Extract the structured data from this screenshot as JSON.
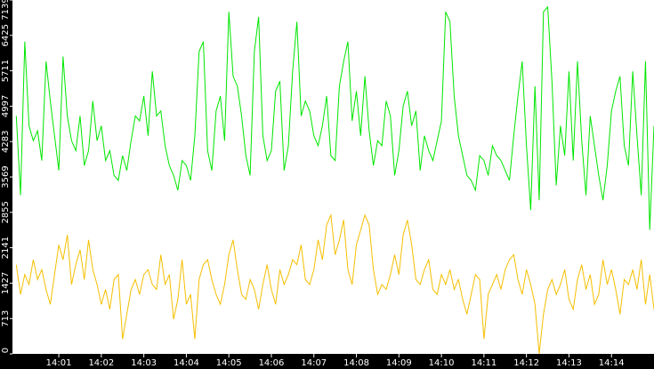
{
  "chart_data": {
    "type": "line",
    "x": [
      0,
      0.1,
      0.2,
      0.3,
      0.4,
      0.5,
      0.6,
      0.7,
      0.8,
      0.9,
      1,
      1.1,
      1.2,
      1.3,
      1.4,
      1.5,
      1.6,
      1.7,
      1.8,
      1.9,
      2,
      2.1,
      2.2,
      2.3,
      2.4,
      2.5,
      2.6,
      2.7,
      2.8,
      2.9,
      3,
      3.1,
      3.2,
      3.3,
      3.4,
      3.5,
      3.6,
      3.7,
      3.8,
      3.9,
      4,
      4.1,
      4.2,
      4.3,
      4.4,
      4.5,
      4.6,
      4.7,
      4.8,
      4.9,
      5,
      5.1,
      5.2,
      5.3,
      5.4,
      5.5,
      5.6,
      5.7,
      5.8,
      5.9,
      6,
      6.1,
      6.2,
      6.3,
      6.4,
      6.5,
      6.6,
      6.7,
      6.8,
      6.9,
      7,
      7.1,
      7.2,
      7.3,
      7.4,
      7.5,
      7.6,
      7.7,
      7.8,
      7.9,
      8,
      8.1,
      8.2,
      8.3,
      8.4,
      8.5,
      8.6,
      8.7,
      8.8,
      8.9,
      9,
      9.1,
      9.2,
      9.3,
      9.4,
      9.5,
      9.6,
      9.7,
      9.8,
      9.9,
      10,
      10.1,
      10.2,
      10.3,
      10.4,
      10.5,
      10.6,
      10.7,
      10.8,
      10.9,
      11,
      11.1,
      11.2,
      11.3,
      11.4,
      11.5,
      11.6,
      11.7,
      11.8,
      11.9,
      12,
      12.1,
      12.2,
      12.3,
      12.4,
      12.5,
      12.6,
      12.7,
      12.8,
      12.9,
      13,
      13.1,
      13.2,
      13.3,
      13.4,
      13.5,
      13.6,
      13.7,
      13.8,
      13.9,
      14,
      14.1,
      14.2,
      14.3,
      14.4,
      14.5,
      14.6,
      14.7,
      14.8,
      14.9,
      15
    ],
    "series": [
      {
        "color": "#00e600",
        "values": [
          4800,
          3200,
          6300,
          4600,
          4300,
          4500,
          3900,
          5900,
          5100,
          4400,
          3700,
          6000,
          4800,
          4300,
          4100,
          4800,
          3800,
          4100,
          5100,
          4300,
          4600,
          3900,
          4100,
          3600,
          3500,
          4000,
          3700,
          4300,
          4800,
          4700,
          5200,
          4400,
          5700,
          4800,
          4900,
          4200,
          3800,
          3600,
          3300,
          3900,
          3800,
          3500,
          4400,
          6100,
          6300,
          4100,
          3700,
          4900,
          5200,
          4300,
          6900,
          5600,
          5400,
          4800,
          4000,
          3600,
          6100,
          6800,
          4400,
          3900,
          4100,
          5300,
          5500,
          3700,
          4200,
          5700,
          6700,
          4800,
          5100,
          4900,
          4400,
          4200,
          4600,
          5200,
          4000,
          3900,
          5400,
          5900,
          6300,
          4700,
          5300,
          4400,
          5600,
          4500,
          3800,
          4300,
          4200,
          5100,
          4800,
          3600,
          4100,
          5000,
          5300,
          4600,
          4900,
          3700,
          4400,
          4100,
          3900,
          4300,
          4700,
          6900,
          6700,
          5200,
          4400,
          4000,
          3600,
          3500,
          3300,
          4000,
          3900,
          3600,
          4200,
          4000,
          3900,
          3700,
          3500,
          4400,
          5200,
          5900,
          4200,
          2900,
          5400,
          3100,
          6900,
          7000,
          5500,
          3400,
          4600,
          4000,
          5700,
          3900,
          5900,
          4300,
          3200,
          4800,
          4200,
          3600,
          3100,
          3800,
          4900,
          5300,
          5600,
          4200,
          3800,
          5700,
          4400,
          3200,
          5900,
          2500,
          4600
        ]
      },
      {
        "color": "#f5bf00",
        "values": [
          1800,
          1200,
          1600,
          1400,
          1900,
          1500,
          1700,
          1300,
          1000,
          1600,
          2200,
          1900,
          2400,
          1400,
          1800,
          2100,
          1500,
          2300,
          1700,
          1400,
          1000,
          1300,
          900,
          1500,
          1600,
          300,
          800,
          1300,
          1500,
          1200,
          1600,
          1700,
          1400,
          1300,
          2000,
          1400,
          1600,
          700,
          1100,
          1900,
          1000,
          1200,
          300,
          1500,
          1800,
          1900,
          1500,
          1200,
          1000,
          1400,
          2000,
          2300,
          1700,
          1200,
          1100,
          1500,
          1300,
          900,
          1400,
          1800,
          1300,
          1000,
          1700,
          1400,
          1600,
          1900,
          1800,
          2200,
          1500,
          1400,
          1700,
          2300,
          1900,
          2600,
          2800,
          2000,
          2300,
          2700,
          1700,
          1400,
          2200,
          2500,
          2800,
          2600,
          1700,
          1200,
          1400,
          1300,
          1600,
          2000,
          1600,
          2400,
          2700,
          2200,
          1500,
          1400,
          1700,
          1900,
          1300,
          1200,
          1600,
          1400,
          1700,
          1300,
          1500,
          1100,
          800,
          1200,
          1600,
          1500,
          300,
          1200,
          1400,
          1600,
          1300,
          1700,
          1900,
          2000,
          1500,
          1200,
          1700,
          1400,
          1000,
          0,
          800,
          1300,
          1500,
          1200,
          1400,
          1700,
          1100,
          900,
          1500,
          1800,
          1300,
          1600,
          1000,
          1200,
          1900,
          1400,
          1700,
          1300,
          800,
          1500,
          1400,
          1700,
          1300,
          1900,
          1000,
          1600,
          900
        ]
      }
    ],
    "xlim": [
      -0.09,
      15.0
    ],
    "xticks": [
      {
        "value": 1,
        "label": "14:01"
      },
      {
        "value": 2,
        "label": "14:02"
      },
      {
        "value": 3,
        "label": "14:03"
      },
      {
        "value": 4,
        "label": "14:04"
      },
      {
        "value": 5,
        "label": "14:05"
      },
      {
        "value": 6,
        "label": "14:06"
      },
      {
        "value": 7,
        "label": "14:07"
      },
      {
        "value": 8,
        "label": "14:08"
      },
      {
        "value": 9,
        "label": "14:09"
      },
      {
        "value": 10,
        "label": "14:10"
      },
      {
        "value": 11,
        "label": "14:11"
      },
      {
        "value": 12,
        "label": "14:12"
      },
      {
        "value": 13,
        "label": "14:13"
      },
      {
        "value": 14,
        "label": "14:14"
      }
    ],
    "ylim": [
      0,
      7139
    ],
    "yticks": [
      0,
      713,
      1427,
      2141,
      2855,
      3569,
      4283,
      4997,
      5711,
      6425,
      7139
    ]
  }
}
